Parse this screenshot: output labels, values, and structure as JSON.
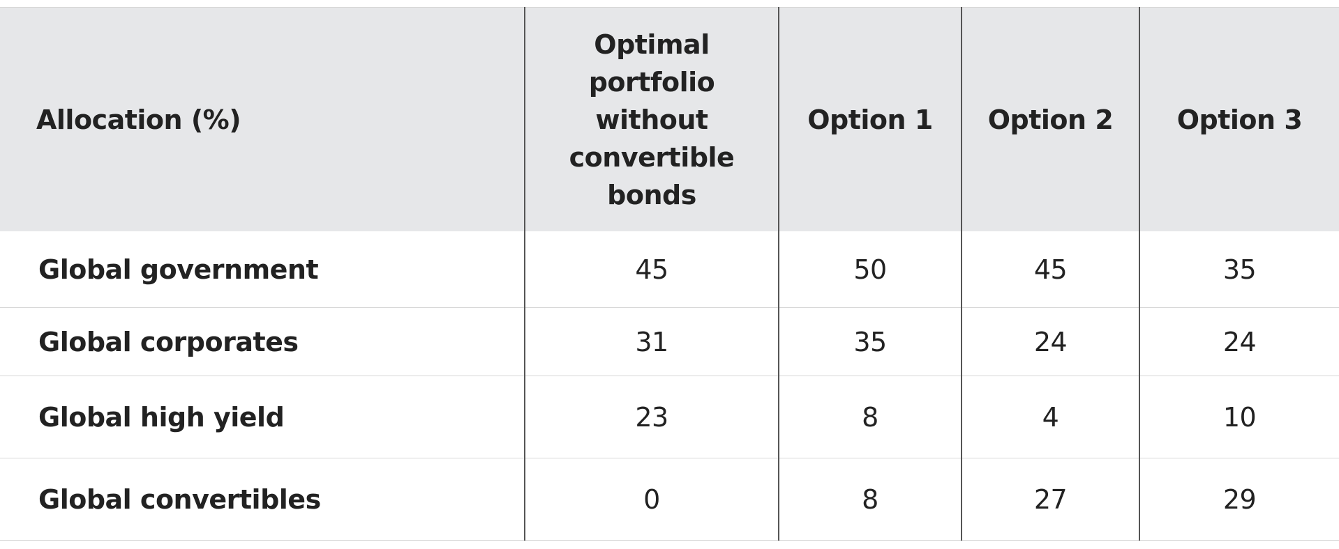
{
  "table": {
    "header": [
      "Allocation (%)",
      "Optimal portfolio without convertible bonds",
      "Option 1",
      "Option 2",
      "Option 3"
    ],
    "rows": [
      [
        "Global government",
        45,
        50,
        45,
        35
      ],
      [
        "Global corporates",
        31,
        35,
        24,
        24
      ],
      [
        "Global high yield",
        23,
        8,
        4,
        10
      ],
      [
        "Global convertibles",
        0,
        8,
        27,
        29
      ]
    ]
  }
}
